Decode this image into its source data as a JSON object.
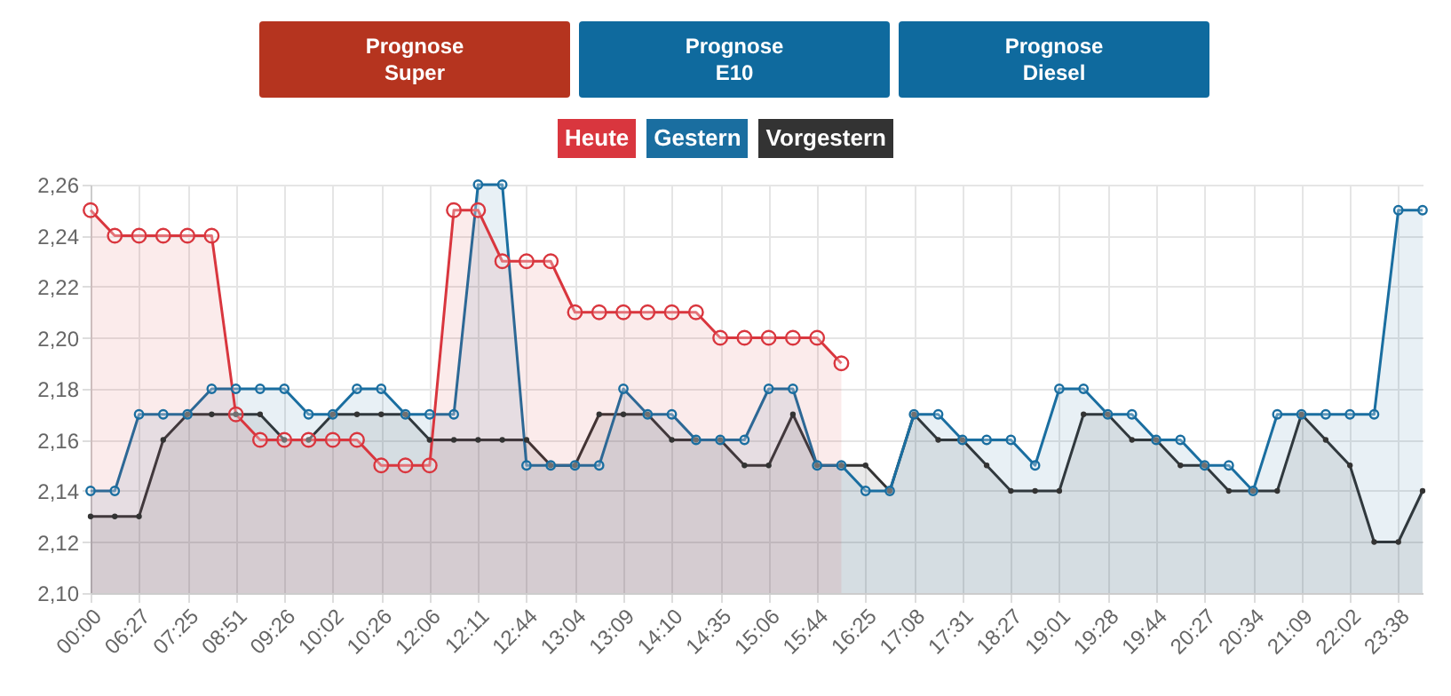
{
  "chart_data": {
    "type": "area",
    "annotations": [
      "Prognose\nSuper",
      "Prognose\nE10",
      "Prognose\nDiesel"
    ],
    "categories": [
      "00:00",
      null,
      "06:27",
      null,
      "07:25",
      null,
      "08:51",
      null,
      "09:26",
      null,
      "10:02",
      null,
      "10:26",
      null,
      "12:06",
      null,
      "12:11",
      null,
      "12:44",
      null,
      "13:04",
      null,
      "13:09",
      null,
      "14:10",
      null,
      "14:35",
      null,
      "15:06",
      null,
      "15:44",
      null,
      "16:25",
      null,
      "17:08",
      null,
      "17:31",
      null,
      "18:27",
      null,
      "19:01",
      null,
      "19:28",
      null,
      "19:44",
      null,
      "20:27",
      null,
      "20:34",
      null,
      "21:09",
      null,
      "22:02",
      null,
      "23:38",
      null
    ],
    "series": [
      {
        "name": "Heute",
        "color": "#d9363e",
        "values": [
          2.25,
          2.24,
          2.24,
          2.24,
          2.24,
          2.24,
          2.17,
          2.16,
          2.16,
          2.16,
          2.16,
          2.16,
          2.15,
          2.15,
          2.15,
          2.25,
          2.25,
          2.23,
          2.23,
          2.23,
          2.21,
          2.21,
          2.21,
          2.21,
          2.21,
          2.21,
          2.2,
          2.2,
          2.2,
          2.2,
          2.2,
          2.19,
          null,
          null,
          null,
          null,
          null,
          null,
          null,
          null,
          null,
          null,
          null,
          null,
          null,
          null,
          null,
          null,
          null,
          null,
          null,
          null,
          null,
          null,
          null,
          null
        ]
      },
      {
        "name": "Gestern",
        "color": "#1a6ea0",
        "values": [
          2.14,
          2.14,
          2.17,
          2.17,
          2.17,
          2.18,
          2.18,
          2.18,
          2.18,
          2.17,
          2.17,
          2.18,
          2.18,
          2.17,
          2.17,
          2.17,
          2.26,
          2.26,
          2.15,
          2.15,
          2.15,
          2.15,
          2.18,
          2.17,
          2.17,
          2.16,
          2.16,
          2.16,
          2.18,
          2.18,
          2.15,
          2.15,
          2.14,
          2.14,
          2.17,
          2.17,
          2.16,
          2.16,
          2.16,
          2.15,
          2.18,
          2.18,
          2.17,
          2.17,
          2.16,
          2.16,
          2.15,
          2.15,
          2.14,
          2.17,
          2.17,
          2.17,
          2.17,
          2.17,
          2.25,
          2.25
        ]
      },
      {
        "name": "Vorgestern",
        "color": "#333333",
        "values": [
          2.13,
          2.13,
          2.13,
          2.16,
          2.17,
          2.17,
          2.17,
          2.17,
          2.16,
          2.16,
          2.17,
          2.17,
          2.17,
          2.17,
          2.16,
          2.16,
          2.16,
          2.16,
          2.16,
          2.15,
          2.15,
          2.17,
          2.17,
          2.17,
          2.16,
          2.16,
          2.16,
          2.15,
          2.15,
          2.17,
          2.15,
          2.15,
          2.15,
          2.14,
          2.17,
          2.16,
          2.16,
          2.15,
          2.14,
          2.14,
          2.14,
          2.17,
          2.17,
          2.16,
          2.16,
          2.15,
          2.15,
          2.14,
          2.14,
          2.14,
          2.17,
          2.16,
          2.15,
          2.12,
          2.12,
          2.14
        ]
      }
    ],
    "ylim": [
      2.1,
      2.26
    ],
    "yticks": [
      {
        "value": 2.1,
        "label": "2,10"
      },
      {
        "value": 2.12,
        "label": "2,12"
      },
      {
        "value": 2.14,
        "label": "2,14"
      },
      {
        "value": 2.16,
        "label": "2,16"
      },
      {
        "value": 2.18,
        "label": "2,18"
      },
      {
        "value": 2.2,
        "label": "2,20"
      },
      {
        "value": 2.22,
        "label": "2,22"
      },
      {
        "value": 2.24,
        "label": "2,24"
      },
      {
        "value": 2.26,
        "label": "2,26"
      }
    ],
    "grid": true,
    "legend": "top",
    "marker": "circle"
  }
}
